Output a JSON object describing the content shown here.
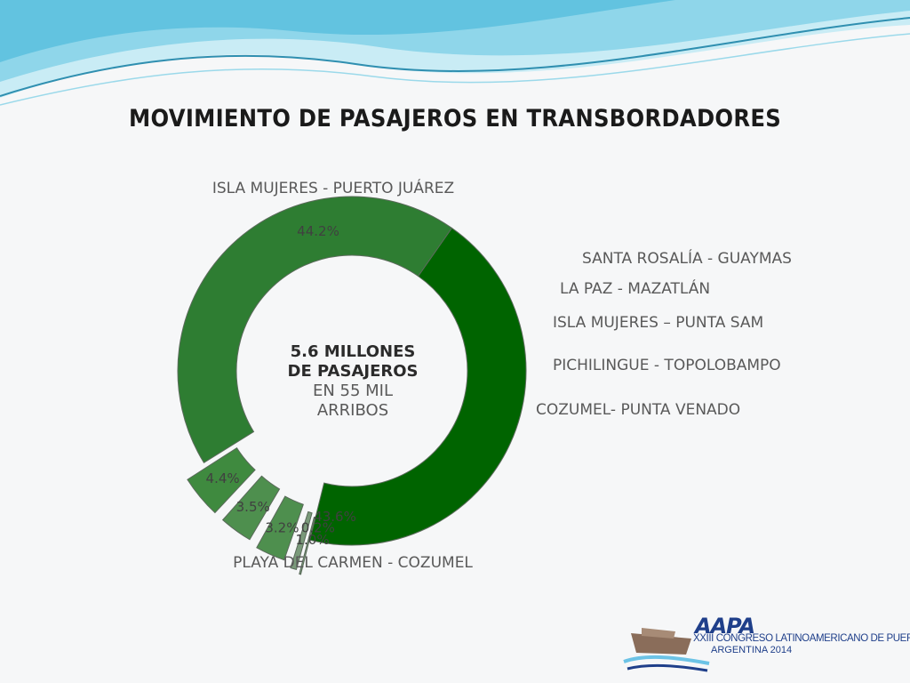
{
  "title": "MOVIMIENTO DE PASAJEROS EN TRANSBORDADORES",
  "center": {
    "line1": "5.6 MILLONES",
    "line2": "DE PASAJEROS",
    "line3": "EN 55 MIL",
    "line4": "ARRIBOS"
  },
  "logo": {
    "brand": "AAPA",
    "line1": "XXIII CONGRESO LATINOAMERICANO DE PUERTOS",
    "line2": "ARGENTINA 2014"
  },
  "colors": {
    "dark_green": "#006400",
    "mid_green": "#2e7d32",
    "light_green": "#4e8f4e",
    "grey_green": "#7a9a7a",
    "wave_blue": "#5bc0de"
  },
  "chart_data": {
    "type": "pie",
    "style": "donut",
    "categories": [
      "ISLA MUJERES - PUERTO JUÁREZ",
      "SANTA ROSALÍA - GUAYMAS",
      "LA PAZ - MAZATLÁN",
      "ISLA MUJERES – PUNTA SAM",
      "PICHILINGUE - TOPOLOBAMPO",
      "COZUMEL- PUNTA VENADO",
      "PLAYA DEL CARMEN - COZUMEL"
    ],
    "values": [
      44.2,
      0.2,
      1.0,
      3.2,
      3.5,
      4.4,
      43.6
    ],
    "value_labels": [
      "44.2%",
      "0.2%",
      "1.0%",
      "3.2%",
      "3.5%",
      "4.4%",
      "43.6%"
    ],
    "exploded": [
      false,
      true,
      true,
      true,
      true,
      true,
      false
    ],
    "slice_colors": [
      "#006400",
      "#7a9a7a",
      "#7a9a7a",
      "#4e8f4e",
      "#4e8f4e",
      "#3f8a3f",
      "#2e7d32"
    ],
    "legend": "none"
  }
}
